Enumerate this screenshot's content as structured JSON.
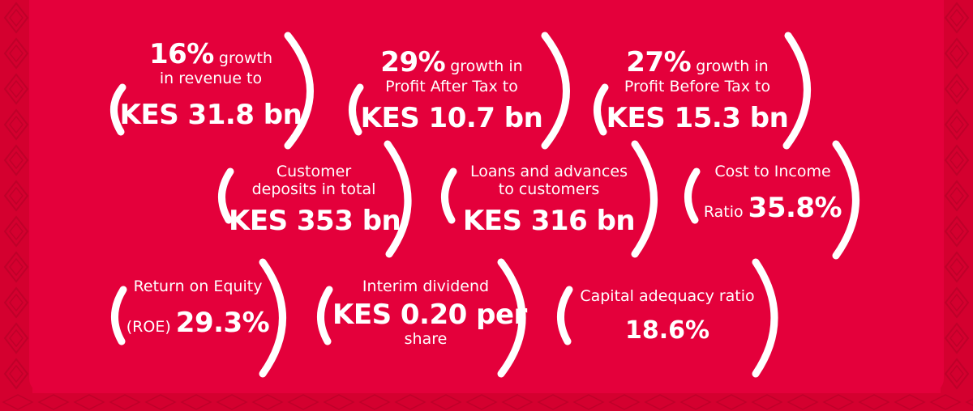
{
  "stats": {
    "revenue": {
      "pct": "16%",
      "text1": " growth",
      "text2": "in revenue to",
      "value": "KES 31.8 bn"
    },
    "pat": {
      "pct": "29%",
      "text1": " growth in",
      "text2": "Profit After Tax to",
      "value": "KES 10.7 bn"
    },
    "pbt": {
      "pct": "27%",
      "text1": " growth in",
      "text2": "Profit Before Tax to",
      "value": "KES 15.3 bn"
    },
    "deposits": {
      "line1": "Customer",
      "line2": "deposits in total",
      "value": "KES 353 bn"
    },
    "loans": {
      "line1": "Loans and advances",
      "line2": "to customers",
      "value": "KES 316 bn"
    },
    "cost_income": {
      "line1": "Cost to Income",
      "prefix": "Ratio ",
      "value": "35.8%"
    },
    "roe": {
      "line1": "Return on Equity",
      "prefix": "(ROE) ",
      "value": "29.3%"
    },
    "dividend": {
      "line1": "Interim dividend",
      "value": "KES 0.20 per",
      "line3": "share"
    },
    "car": {
      "line1": "Capital adequacy ratio",
      "value": "18.6%"
    }
  },
  "colors": {
    "background": "#e4003b",
    "border": "#d0002f",
    "text": "#ffffff"
  }
}
